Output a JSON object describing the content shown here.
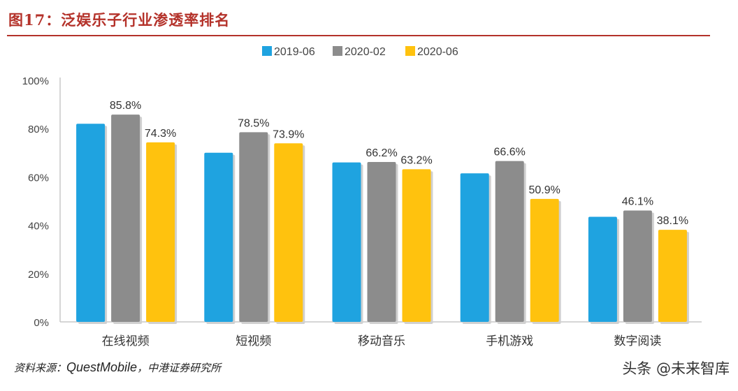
{
  "figure_title": "图17：泛娱乐子行业渗透率排名",
  "source": {
    "prefix": "资料来源：",
    "brand": "QuestMobile",
    "suffix": "，中港证券研究所"
  },
  "watermark_text": "头条 @未来智库",
  "colors": {
    "title": "#b4322a",
    "series": [
      "#1fa3e0",
      "#8c8c8c",
      "#ffc20e"
    ]
  },
  "chart_data": {
    "type": "bar",
    "categories": [
      "在线视频",
      "短视频",
      "移动音乐",
      "手机游戏",
      "数字阅读"
    ],
    "series": [
      {
        "name": "2019-06",
        "values": [
          82,
          70,
          66,
          61.5,
          43.5
        ]
      },
      {
        "name": "2020-02",
        "values": [
          85.8,
          78.5,
          66.2,
          66.6,
          46.1
        ]
      },
      {
        "name": "2020-06",
        "values": [
          74.3,
          73.9,
          63.2,
          50.9,
          38.1
        ]
      }
    ],
    "data_labels": [
      {
        "series": 1,
        "category": 0,
        "text": "85.8%"
      },
      {
        "series": 2,
        "category": 0,
        "text": "74.3%"
      },
      {
        "series": 1,
        "category": 1,
        "text": "78.5%"
      },
      {
        "series": 2,
        "category": 1,
        "text": "73.9%"
      },
      {
        "series": 1,
        "category": 2,
        "text": "66.2%"
      },
      {
        "series": 2,
        "category": 2,
        "text": "63.2%"
      },
      {
        "series": 1,
        "category": 3,
        "text": "66.6%"
      },
      {
        "series": 2,
        "category": 3,
        "text": "50.9%"
      },
      {
        "series": 1,
        "category": 4,
        "text": "46.1%"
      },
      {
        "series": 2,
        "category": 4,
        "text": "38.1%"
      }
    ],
    "y_ticks": [
      "0%",
      "20%",
      "40%",
      "60%",
      "80%",
      "100%"
    ],
    "ylim": [
      0,
      100
    ],
    "legend_position": "top-center",
    "grid": false
  }
}
